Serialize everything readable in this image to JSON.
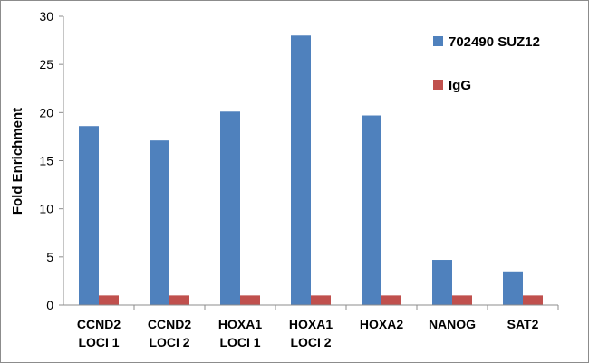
{
  "chart_data": {
    "type": "bar",
    "title": "",
    "xlabel": "",
    "ylabel": "Fold Enrichment",
    "ylim": [
      0,
      30
    ],
    "yticks": [
      0,
      5,
      10,
      15,
      20,
      25,
      30
    ],
    "grid": false,
    "legend_position": "right",
    "categories": [
      [
        "CCND2",
        "LOCI 1"
      ],
      [
        "CCND2",
        "LOCI 2"
      ],
      [
        "HOXA1",
        "LOCI 1"
      ],
      [
        "HOXA1",
        "LOCI 2"
      ],
      [
        "HOXA2"
      ],
      [
        "NANOG"
      ],
      [
        "SAT2"
      ]
    ],
    "series": [
      {
        "name": "702490 SUZ12",
        "color": "#4f81bd",
        "values": [
          18.6,
          17.1,
          20.1,
          28.0,
          19.7,
          4.7,
          3.5
        ]
      },
      {
        "name": "IgG",
        "color": "#c0504d",
        "values": [
          1.0,
          1.0,
          1.0,
          1.0,
          1.0,
          1.0,
          1.0
        ]
      }
    ]
  }
}
